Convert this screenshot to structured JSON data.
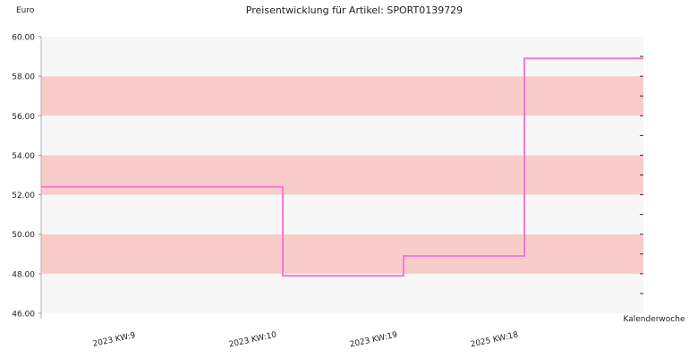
{
  "chart_data": {
    "type": "line",
    "title": "Preisentwicklung für Artikel: SPORT0139729",
    "ylabel": "Euro",
    "xlabel": "Kalenderwoche",
    "ylim": [
      46,
      60
    ],
    "yticks": [
      "46.00",
      "48.00",
      "50.00",
      "52.00",
      "54.00",
      "56.00",
      "58.00",
      "60.00"
    ],
    "xcategories": [
      "2023 KW:9",
      "2023 KW:10",
      "2023 KW:19",
      "2025 KW:18"
    ],
    "series": [
      {
        "step": true,
        "points": [
          {
            "x": "2023 KW:9",
            "y": 52.4
          },
          {
            "x": "2023 KW:10",
            "y": 47.9
          },
          {
            "x": "2023 KW:19",
            "y": 48.9
          },
          {
            "x": "2025 KW:18",
            "y": 58.9
          }
        ]
      }
    ],
    "bands": [
      "#f7f7f7",
      "#f9cccc"
    ],
    "line_color": "#ff77cc",
    "grid": true
  }
}
